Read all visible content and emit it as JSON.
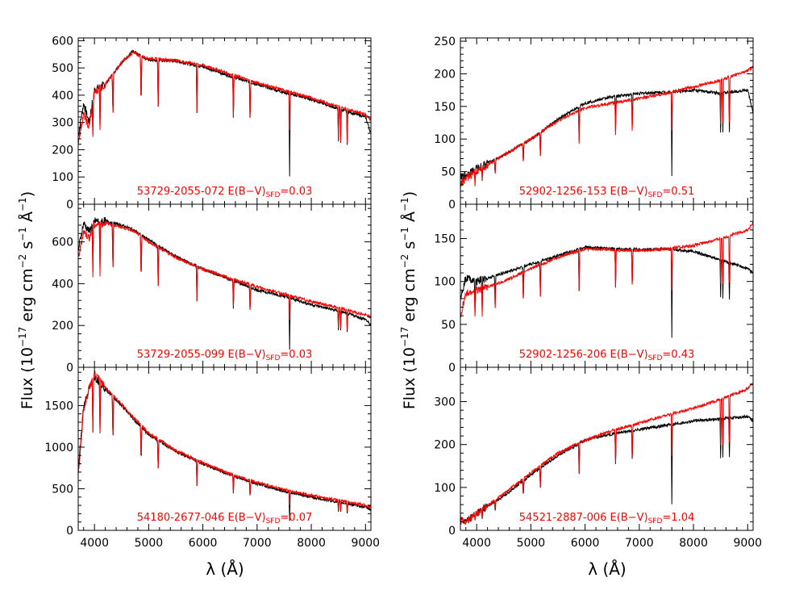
{
  "figure": {
    "ylabel_prefix": "Flux (10",
    "ylabel_exp1": "−17",
    "ylabel_mid1": " erg cm",
    "ylabel_exp2": "−2",
    "ylabel_mid2": " s",
    "ylabel_exp3": "−1",
    "ylabel_mid3": " Å",
    "ylabel_exp4": "−1",
    "ylabel_suffix": ")",
    "xlabel": "λ (Å)",
    "model_color": "#ff0000",
    "observed_color": "#000000"
  },
  "chart_data": [
    {
      "type": "line",
      "panel": "left-top",
      "label_main": "53729-2055-072 E(B−V)",
      "label_sub": "SFD",
      "label_value": "=0.03",
      "xlim": [
        3700,
        9100
      ],
      "ylim": [
        0,
        610
      ],
      "yticks": [
        0,
        100,
        200,
        300,
        400,
        500,
        600
      ],
      "xticks": [
        4000,
        5000,
        6000,
        7000,
        8000,
        9000
      ],
      "series": [
        {
          "role": "observed",
          "x": [
            3700,
            3800,
            3900,
            4000,
            4200,
            4500,
            4700,
            5000,
            5500,
            6000,
            6500,
            7000,
            7500,
            8000,
            8500,
            9000,
            9100
          ],
          "y": [
            250,
            370,
            300,
            420,
            440,
            520,
            560,
            530,
            525,
            505,
            470,
            440,
            410,
            385,
            350,
            320,
            260
          ]
        },
        {
          "role": "model",
          "x": [
            3700,
            3800,
            3900,
            4000,
            4200,
            4500,
            4700,
            5000,
            5500,
            6000,
            6500,
            7000,
            7500,
            8000,
            8500,
            9000,
            9100
          ],
          "y": [
            230,
            330,
            280,
            410,
            440,
            520,
            555,
            535,
            528,
            510,
            478,
            445,
            418,
            390,
            358,
            330,
            310
          ]
        }
      ]
    },
    {
      "type": "line",
      "panel": "left-middle",
      "label_main": "53729-2055-099 E(B−V)",
      "label_sub": "SFD",
      "label_value": "=0.03",
      "xlim": [
        3700,
        9100
      ],
      "ylim": [
        0,
        780
      ],
      "yticks": [
        0,
        200,
        400,
        600
      ],
      "xticks": [
        4000,
        5000,
        6000,
        7000,
        8000,
        9000
      ],
      "series": [
        {
          "role": "observed",
          "x": [
            3700,
            3800,
            3900,
            4000,
            4200,
            4500,
            4700,
            5000,
            5500,
            6000,
            6500,
            7000,
            7500,
            8000,
            8500,
            9000,
            9100
          ],
          "y": [
            560,
            690,
            650,
            700,
            700,
            680,
            660,
            610,
            530,
            470,
            420,
            370,
            340,
            300,
            270,
            230,
            200
          ]
        },
        {
          "role": "model",
          "x": [
            3700,
            3800,
            3900,
            4000,
            4200,
            4500,
            4700,
            5000,
            5500,
            6000,
            6500,
            7000,
            7500,
            8000,
            8500,
            9000,
            9100
          ],
          "y": [
            520,
            650,
            620,
            680,
            690,
            670,
            655,
            600,
            525,
            470,
            425,
            385,
            350,
            315,
            285,
            250,
            240
          ]
        }
      ]
    },
    {
      "type": "line",
      "panel": "left-bottom",
      "label_main": "54180-2677-046 E(B−V)",
      "label_sub": "SFD",
      "label_value": "=0.07",
      "xlim": [
        3700,
        9100
      ],
      "ylim": [
        0,
        1960
      ],
      "yticks": [
        0,
        500,
        1000,
        1500
      ],
      "xticks": [
        4000,
        5000,
        6000,
        7000,
        8000,
        9000
      ],
      "series": [
        {
          "role": "observed",
          "x": [
            3700,
            3800,
            3900,
            4000,
            4200,
            4500,
            4700,
            5000,
            5500,
            6000,
            6500,
            7000,
            7500,
            8000,
            8500,
            9000,
            9100
          ],
          "y": [
            700,
            1500,
            1700,
            1850,
            1700,
            1500,
            1350,
            1150,
            950,
            800,
            670,
            560,
            470,
            400,
            340,
            280,
            250
          ]
        },
        {
          "role": "model",
          "x": [
            3700,
            3800,
            3900,
            4000,
            4200,
            4500,
            4700,
            5000,
            5500,
            6000,
            6500,
            7000,
            7500,
            8000,
            8500,
            9000,
            9100
          ],
          "y": [
            650,
            1450,
            1700,
            1880,
            1720,
            1520,
            1370,
            1170,
            960,
            810,
            680,
            575,
            490,
            420,
            360,
            300,
            280
          ]
        }
      ]
    },
    {
      "type": "line",
      "panel": "right-top",
      "label_main": "52902-1256-153 E(B−V)",
      "label_sub": "SFD",
      "label_value": "=0.51",
      "xlim": [
        3700,
        9100
      ],
      "ylim": [
        0,
        255
      ],
      "yticks": [
        0,
        50,
        100,
        150,
        200,
        250
      ],
      "xticks": [
        4000,
        5000,
        6000,
        7000,
        8000,
        9000
      ],
      "series": [
        {
          "role": "observed",
          "x": [
            3700,
            3800,
            4000,
            4500,
            5000,
            5500,
            6000,
            6500,
            7000,
            7500,
            8000,
            8500,
            9000,
            9100
          ],
          "y": [
            40,
            45,
            55,
            75,
            100,
            130,
            155,
            165,
            170,
            172,
            175,
            170,
            175,
            140
          ]
        },
        {
          "role": "model",
          "x": [
            3700,
            3800,
            4000,
            4500,
            5000,
            5500,
            6000,
            6500,
            7000,
            7500,
            8000,
            8500,
            9000,
            9100
          ],
          "y": [
            30,
            40,
            50,
            75,
            100,
            128,
            148,
            155,
            162,
            170,
            180,
            190,
            205,
            210
          ]
        }
      ]
    },
    {
      "type": "line",
      "panel": "right-middle",
      "label_main": "52902-1256-206 E(B−V)",
      "label_sub": "SFD",
      "label_value": "=0.43",
      "xlim": [
        3700,
        9100
      ],
      "ylim": [
        0,
        190
      ],
      "yticks": [
        0,
        50,
        100,
        150
      ],
      "xticks": [
        4000,
        5000,
        6000,
        7000,
        8000,
        9000
      ],
      "series": [
        {
          "role": "observed",
          "x": [
            3700,
            3800,
            4000,
            4500,
            5000,
            5500,
            6000,
            6500,
            7000,
            7500,
            8000,
            8500,
            9000,
            9100
          ],
          "y": [
            80,
            105,
            100,
            110,
            120,
            130,
            140,
            138,
            137,
            138,
            135,
            125,
            115,
            110
          ]
        },
        {
          "role": "model",
          "x": [
            3700,
            3800,
            4000,
            4500,
            5000,
            5500,
            6000,
            6500,
            7000,
            7500,
            8000,
            8500,
            9000,
            9100
          ],
          "y": [
            60,
            85,
            90,
            100,
            115,
            128,
            138,
            137,
            136,
            138,
            142,
            150,
            160,
            168
          ]
        }
      ]
    },
    {
      "type": "line",
      "panel": "right-bottom",
      "label_main": "54521-2887-006 E(B−V)",
      "label_sub": "SFD",
      "label_value": "=1.04",
      "xlim": [
        3700,
        9100
      ],
      "ylim": [
        0,
        380
      ],
      "yticks": [
        0,
        100,
        200,
        300
      ],
      "xticks": [
        4000,
        5000,
        6000,
        7000,
        8000,
        9000
      ],
      "series": [
        {
          "role": "observed",
          "x": [
            3700,
            3800,
            4000,
            4500,
            5000,
            5500,
            6000,
            6500,
            7000,
            7500,
            8000,
            8500,
            9000,
            9100
          ],
          "y": [
            30,
            20,
            40,
            80,
            130,
            175,
            210,
            225,
            235,
            245,
            255,
            260,
            265,
            255
          ]
        },
        {
          "role": "model",
          "x": [
            3700,
            3800,
            4000,
            4500,
            5000,
            5500,
            6000,
            6500,
            7000,
            7500,
            8000,
            8500,
            9000,
            9100
          ],
          "y": [
            20,
            20,
            40,
            85,
            135,
            180,
            210,
            232,
            250,
            268,
            285,
            305,
            330,
            345
          ]
        }
      ]
    }
  ]
}
